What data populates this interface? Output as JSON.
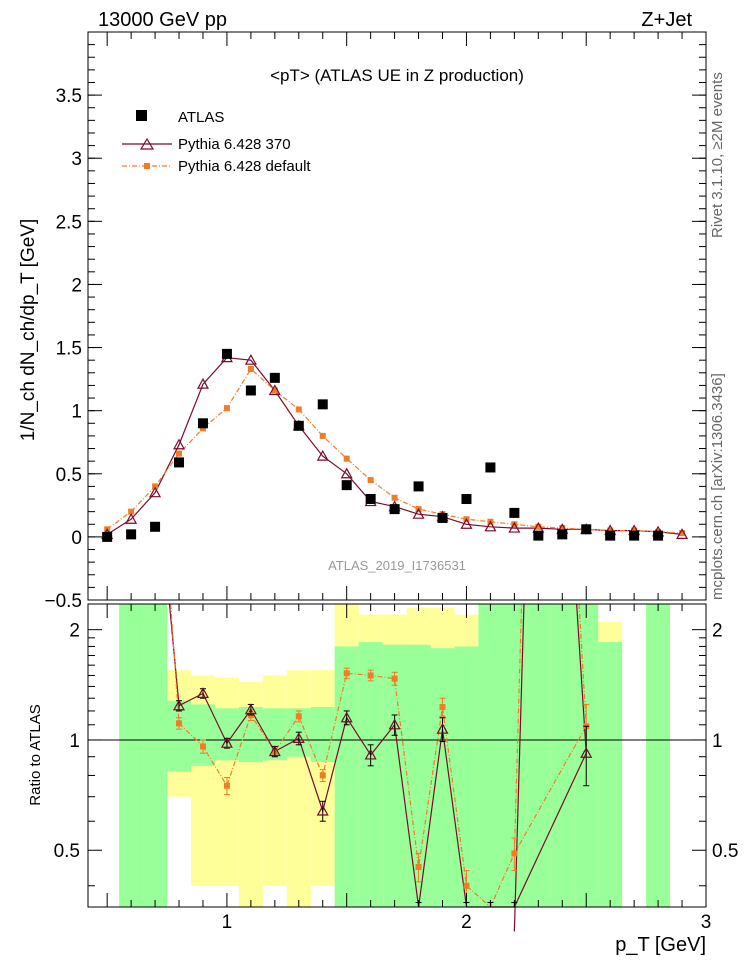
{
  "header": {
    "left": "13000 GeV pp",
    "right": "Z+Jet"
  },
  "side_labels": {
    "rivet": "Rivet 3.1.10, ≥2M events",
    "mcplots": "mcplots.cern.ch [arXiv:1306.3436]"
  },
  "chart_data": {
    "type": "line",
    "title": "<pT> (ATLAS UE in Z production)",
    "watermark": "ATLAS_2019_I1736531",
    "xlabel": "p_T [GeV]",
    "ylabel": "1/N_ch dN_ch/dp_T [GeV]",
    "xlim": [
      0.42,
      3.0
    ],
    "ylim": [
      -0.5,
      4.0
    ],
    "yticks": [
      -0.5,
      0,
      0.5,
      1,
      1.5,
      2,
      2.5,
      3,
      3.5
    ],
    "ytick_labels": [
      "−0.5",
      "0",
      "0.5",
      "1",
      "1.5",
      "2",
      "2.5",
      "3",
      "3.5"
    ],
    "xticks": [
      1,
      2,
      3
    ],
    "legend_position": "top-left",
    "legend": {
      "atlas": "ATLAS",
      "p370": "Pythia 6.428 370",
      "pdef": "Pythia 6.428 default"
    },
    "colors": {
      "atlas": "#000000",
      "p370": "#7a0a2a",
      "pdef": "#f07c26",
      "band_green": "#99ff99",
      "band_yellow": "#ffff99"
    },
    "x": [
      0.5,
      0.6,
      0.7,
      0.8,
      0.9,
      1.0,
      1.1,
      1.2,
      1.3,
      1.4,
      1.5,
      1.6,
      1.7,
      1.8,
      1.9,
      2.0,
      2.1,
      2.2,
      2.3,
      2.4,
      2.5,
      2.6,
      2.7,
      2.8,
      2.9
    ],
    "series": [
      {
        "name": "ATLAS",
        "values": [
          0.0,
          0.02,
          0.08,
          0.59,
          0.9,
          1.45,
          1.16,
          1.26,
          0.88,
          1.05,
          0.41,
          0.3,
          0.22,
          0.4,
          0.15,
          0.3,
          0.55,
          0.19,
          0.01,
          0.02,
          0.06,
          0.01,
          0.01,
          0.01,
          null
        ]
      },
      {
        "name": "Pythia 6.428 370",
        "values": [
          0.02,
          0.14,
          0.35,
          0.73,
          1.21,
          1.42,
          1.4,
          1.16,
          0.88,
          0.64,
          0.5,
          0.28,
          0.24,
          0.18,
          0.16,
          0.1,
          0.08,
          0.07,
          0.07,
          0.06,
          0.06,
          0.05,
          0.05,
          0.04,
          0.02
        ]
      },
      {
        "name": "Pythia 6.428 default",
        "values": [
          0.06,
          0.2,
          0.4,
          0.66,
          0.86,
          1.02,
          1.33,
          1.16,
          1.01,
          0.8,
          0.62,
          0.45,
          0.31,
          0.22,
          0.18,
          0.14,
          0.12,
          0.1,
          0.08,
          0.07,
          0.06,
          0.05,
          0.05,
          0.04,
          0.03
        ]
      }
    ],
    "ratio": {
      "ylabel": "Ratio to ATLAS",
      "ylim": [
        0.35,
        2.35
      ],
      "yticks": [
        0.5,
        1,
        2
      ],
      "ytick_labels": [
        "0.5",
        "1",
        "2"
      ],
      "x": [
        0.8,
        0.9,
        1.0,
        1.1,
        1.2,
        1.3,
        1.4,
        1.5,
        1.6,
        1.7,
        1.8,
        1.9,
        2.0,
        2.1,
        2.2,
        2.3,
        2.4,
        2.5
      ],
      "p370": [
        1.24,
        1.34,
        0.98,
        1.21,
        0.93,
        1.01,
        0.64,
        1.15,
        0.91,
        1.1,
        0.32,
        1.07,
        0.33,
        0.15,
        0.3,
        null,
        null,
        0.92
      ],
      "p370_err": [
        0.04,
        0.04,
        0.03,
        0.04,
        0.03,
        0.04,
        0.04,
        0.05,
        0.06,
        0.07,
        0.03,
        0.08,
        0.03,
        0.02,
        0.03,
        null,
        null,
        0.17
      ],
      "pdef": [
        1.11,
        0.96,
        0.75,
        1.17,
        0.93,
        1.16,
        0.8,
        1.52,
        1.5,
        1.47,
        0.45,
        1.23,
        0.4,
        0.22,
        0.49,
        null,
        null,
        1.09
      ],
      "pdef_err": [
        0.04,
        0.04,
        0.04,
        0.04,
        0.03,
        0.04,
        0.03,
        0.05,
        0.05,
        0.06,
        0.04,
        0.07,
        0.04,
        0.02,
        0.05,
        null,
        null,
        0.16
      ],
      "bands": {
        "edges": [
          0.55,
          0.65,
          0.75,
          0.85,
          0.95,
          1.05,
          1.15,
          1.25,
          1.35,
          1.45,
          1.55,
          1.65,
          1.75,
          1.85,
          1.95,
          2.05,
          2.15,
          2.25,
          2.35,
          2.45,
          2.55,
          2.65,
          2.75,
          2.85
        ],
        "green": [
          [
            0.35,
            2.35
          ],
          [
            0.35,
            2.35
          ],
          [
            0.82,
            1.28
          ],
          [
            0.85,
            1.25
          ],
          [
            0.88,
            1.22
          ],
          [
            0.87,
            1.23
          ],
          [
            0.88,
            1.22
          ],
          [
            0.9,
            1.22
          ],
          [
            0.87,
            1.23
          ],
          [
            0.35,
            1.8
          ],
          [
            0.35,
            1.85
          ],
          [
            0.35,
            1.82
          ],
          [
            0.35,
            1.82
          ],
          [
            0.35,
            1.78
          ],
          [
            0.35,
            1.8
          ],
          [
            0.35,
            2.35
          ],
          [
            0.35,
            2.35
          ],
          [
            0.35,
            2.35
          ],
          [
            0.35,
            2.35
          ],
          [
            0.35,
            2.35
          ],
          [
            0.35,
            1.85
          ],
          null,
          [
            0.35,
            2.35
          ],
          null
        ],
        "yellow": [
          [
            0.35,
            2.35
          ],
          [
            0.35,
            2.25
          ],
          [
            0.7,
            1.55
          ],
          [
            0.4,
            1.5
          ],
          [
            0.4,
            1.48
          ],
          [
            0.35,
            1.44
          ],
          [
            0.4,
            1.5
          ],
          [
            0.35,
            1.55
          ],
          [
            0.4,
            1.55
          ],
          [
            0.35,
            2.35
          ],
          [
            0.35,
            2.2
          ],
          [
            0.35,
            2.2
          ],
          [
            0.35,
            2.3
          ],
          [
            0.35,
            2.3
          ],
          [
            0.35,
            2.2
          ],
          [
            0.35,
            2.35
          ],
          [
            0.35,
            2.35
          ],
          [
            0.35,
            2.35
          ],
          [
            0.35,
            2.35
          ],
          [
            0.35,
            2.35
          ],
          [
            0.35,
            2.1
          ],
          null,
          [
            0.35,
            2.35
          ],
          null
        ]
      }
    }
  }
}
